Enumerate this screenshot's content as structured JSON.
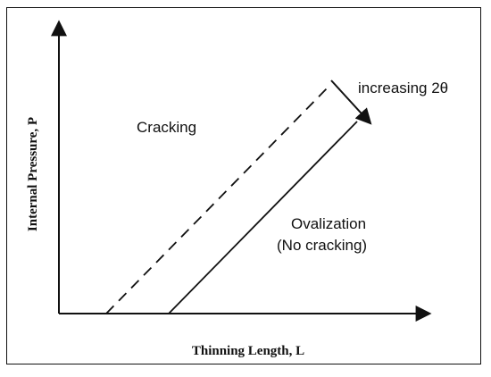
{
  "diagram": {
    "y_axis_label": "Internal Pressure, P",
    "x_axis_label": "Thinning Length, L",
    "region_upper": "Cracking",
    "region_lower_line1": "Ovalization",
    "region_lower_line2": "(No cracking)",
    "trend_label": "increasing 2θ"
  }
}
